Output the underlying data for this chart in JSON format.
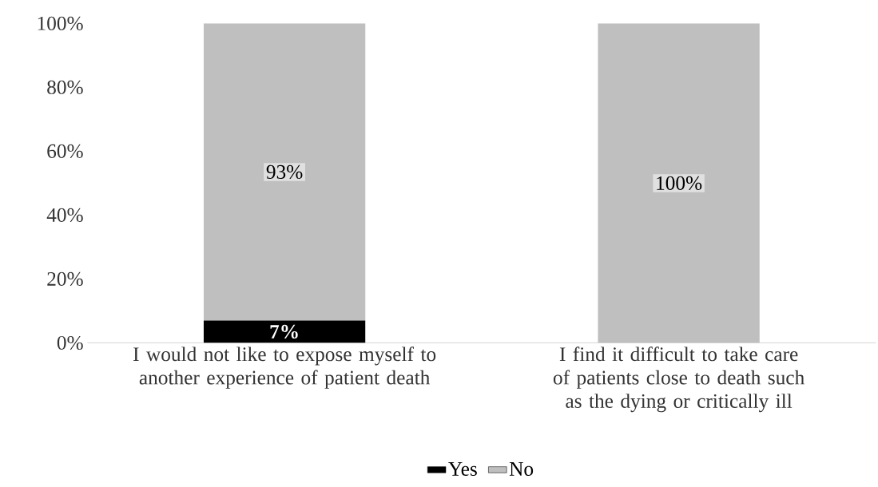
{
  "chart_data": {
    "type": "bar",
    "stacked": true,
    "categories": [
      "I would not like to expose myself to another experience of patient death",
      "I find it difficult to take care of patients close to death such as the dying or critically ill"
    ],
    "series": [
      {
        "name": "Yes",
        "color": "#000000",
        "values": [
          7,
          0
        ],
        "value_labels": [
          "7%",
          null
        ]
      },
      {
        "name": "No",
        "color": "#bfbfbf",
        "values": [
          93,
          100
        ],
        "value_labels": [
          "93%",
          "100%"
        ]
      }
    ],
    "ylim": [
      0,
      100
    ],
    "yticks": [
      {
        "value": 0,
        "label": "0%"
      },
      {
        "value": 20,
        "label": "20%"
      },
      {
        "value": 40,
        "label": "40%"
      },
      {
        "value": 60,
        "label": "60%"
      },
      {
        "value": 80,
        "label": "80%"
      },
      {
        "value": 100,
        "label": "100%"
      }
    ],
    "grid": false,
    "legend": "bottom"
  }
}
